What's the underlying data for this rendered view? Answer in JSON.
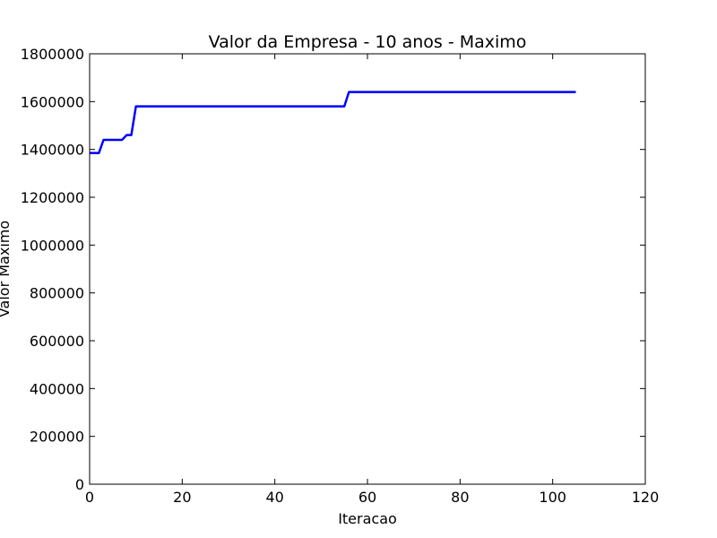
{
  "chart_data": {
    "type": "line",
    "title": "Valor da Empresa - 10 anos - Maximo",
    "xlabel": "Iteracao",
    "ylabel": "Valor Maximo",
    "xlim": [
      0,
      120
    ],
    "ylim": [
      0,
      1800000
    ],
    "xticks": [
      0,
      20,
      40,
      60,
      80,
      100,
      120
    ],
    "yticks": [
      0,
      200000,
      400000,
      600000,
      800000,
      1000000,
      1200000,
      1400000,
      1600000,
      1800000
    ],
    "grid": false,
    "line_color": "#0000ff",
    "series": [
      {
        "x": [
          0,
          2,
          3,
          7,
          8,
          9,
          10,
          55,
          56,
          105
        ],
        "y": [
          1385000,
          1385000,
          1440000,
          1440000,
          1460000,
          1460000,
          1580000,
          1580000,
          1640000,
          1640000
        ]
      }
    ]
  }
}
